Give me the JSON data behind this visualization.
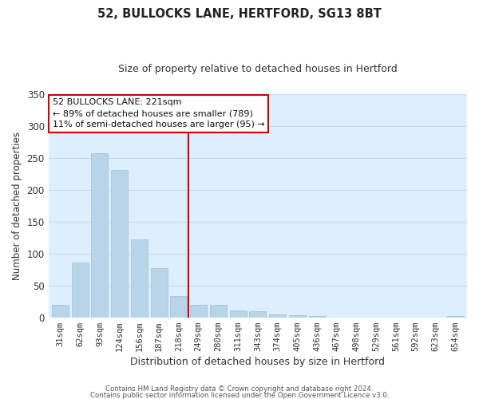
{
  "title": "52, BULLOCKS LANE, HERTFORD, SG13 8BT",
  "subtitle": "Size of property relative to detached houses in Hertford",
  "xlabel": "Distribution of detached houses by size in Hertford",
  "ylabel": "Number of detached properties",
  "bar_color": "#b8d4e8",
  "bar_edgecolor": "#a0c0d8",
  "categories": [
    "31sqm",
    "62sqm",
    "93sqm",
    "124sqm",
    "156sqm",
    "187sqm",
    "218sqm",
    "249sqm",
    "280sqm",
    "311sqm",
    "343sqm",
    "374sqm",
    "405sqm",
    "436sqm",
    "467sqm",
    "498sqm",
    "529sqm",
    "561sqm",
    "592sqm",
    "623sqm",
    "654sqm"
  ],
  "values": [
    19,
    86,
    257,
    231,
    122,
    77,
    33,
    20,
    20,
    11,
    9,
    4,
    3,
    2,
    0,
    0,
    0,
    0,
    0,
    0,
    2
  ],
  "annotation_title": "52 BULLOCKS LANE: 221sqm",
  "annotation_line1": "← 89% of detached houses are smaller (789)",
  "annotation_line2": "11% of semi-detached houses are larger (95) →",
  "marker_bar_index": 6,
  "ylim": [
    0,
    350
  ],
  "yticks": [
    0,
    50,
    100,
    150,
    200,
    250,
    300,
    350
  ],
  "footer1": "Contains HM Land Registry data © Crown copyright and database right 2024.",
  "footer2": "Contains public sector information licensed under the Open Government Licence v3.0.",
  "background_color": "#ffffff",
  "plot_bg_color": "#ddeeff",
  "grid_color": "#c5d8ec",
  "annotation_box_facecolor": "#ffffff",
  "annotation_box_edgecolor": "#cc0000",
  "marker_line_color": "#cc0000"
}
